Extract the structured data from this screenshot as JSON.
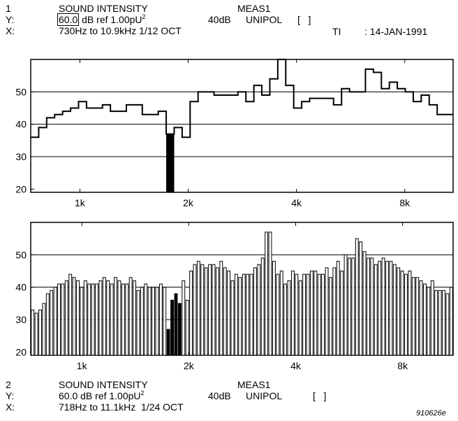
{
  "top": {
    "number": "1",
    "title": "SOUND INTENSITY",
    "meas": "MEAS1",
    "y_prefix": "Y:",
    "y_level": "60.0",
    "y_ref": "dB ref 1.00pU",
    "y_sup": "2",
    "range": "40dB",
    "mode": "UNIPOL",
    "brackets": "[   ]",
    "x_prefix": "X:",
    "x_text": "730Hz to 10.9kHz 1/12 OCT",
    "ti_label": "TI",
    "date": ": 14-JAN-1991"
  },
  "bottom": {
    "number": "2",
    "title": "SOUND INTENSITY",
    "meas": "MEAS1",
    "y_prefix": "Y:",
    "y_text": "60.0 dB ref 1.00pU",
    "y_sup": "2",
    "range": "40dB",
    "mode": "UNIPOL",
    "brackets": "[   ]",
    "x_prefix": "X:",
    "x_text": "718Hz to 11.1kHz  1/24 OCT"
  },
  "figure_code": "910626e",
  "chart_data": [
    {
      "type": "bar",
      "style": "step",
      "x_scale": "log",
      "x_ticks": [
        {
          "label": "1k",
          "hz": 1000
        },
        {
          "label": "2k",
          "hz": 2000
        },
        {
          "label": "4k",
          "hz": 4000
        },
        {
          "label": "8k",
          "hz": 8000
        }
      ],
      "x_range_hz": [
        730,
        10900
      ],
      "bands_per_octave": 12,
      "y_ticks": [
        20,
        30,
        40,
        50
      ],
      "ylim": [
        19,
        60
      ],
      "grid_y": [
        30,
        40,
        50
      ],
      "negative_color": "#000000",
      "values": [
        36,
        39,
        42,
        43,
        44,
        45,
        47,
        45,
        45,
        46,
        44,
        44,
        46,
        46,
        43,
        43,
        44,
        37,
        39,
        36,
        47,
        50,
        50,
        49,
        49,
        49,
        50,
        47,
        52,
        49,
        54,
        60,
        52,
        45,
        47,
        48,
        48,
        48,
        46,
        51,
        50,
        50,
        57,
        56,
        51,
        53,
        51,
        50,
        47,
        49,
        46,
        43,
        43
      ],
      "negative": [
        false,
        false,
        false,
        false,
        false,
        false,
        false,
        false,
        false,
        false,
        false,
        false,
        false,
        false,
        false,
        false,
        false,
        true,
        false,
        false,
        false,
        false,
        false,
        false,
        false,
        false,
        false,
        false,
        false,
        false,
        false,
        false,
        false,
        false,
        false,
        false,
        false,
        false,
        false,
        false,
        false,
        false,
        false,
        false,
        false,
        false,
        false,
        false,
        false,
        false,
        false,
        false,
        false
      ]
    },
    {
      "type": "bar",
      "x_scale": "log",
      "x_ticks": [
        {
          "label": "1k",
          "hz": 1000
        },
        {
          "label": "2k",
          "hz": 2000
        },
        {
          "label": "4k",
          "hz": 4000
        },
        {
          "label": "8k",
          "hz": 8000
        }
      ],
      "x_range_hz": [
        718,
        11100
      ],
      "bands_per_octave": 24,
      "y_ticks": [
        20,
        30,
        40,
        50
      ],
      "ylim": [
        19,
        60
      ],
      "grid_y": [
        30,
        40,
        50
      ],
      "negative_color": "#000000",
      "values": [
        33,
        32,
        33,
        35,
        38,
        39,
        40,
        41,
        41,
        42,
        44,
        43,
        42,
        40,
        42,
        41,
        41,
        41,
        42,
        43,
        42,
        41,
        43,
        42,
        41,
        41,
        43,
        42,
        39,
        40,
        41,
        40,
        40,
        40,
        41,
        40,
        27,
        36,
        38,
        35,
        42,
        36,
        45,
        47,
        48,
        47,
        46,
        47,
        47,
        46,
        48,
        46,
        45,
        42,
        44,
        43,
        44,
        44,
        44,
        46,
        47,
        49,
        57,
        57,
        48,
        44,
        45,
        41,
        42,
        45,
        44,
        42,
        44,
        44,
        45,
        45,
        44,
        44,
        46,
        43,
        46,
        48,
        45,
        50,
        49,
        49,
        55,
        54,
        51,
        49,
        49,
        47,
        48,
        49,
        48,
        48,
        47,
        46,
        45,
        44,
        45,
        43,
        43,
        42,
        41,
        40,
        42,
        39,
        39,
        39,
        38,
        40
      ],
      "negative": [
        false,
        false,
        false,
        false,
        false,
        false,
        false,
        false,
        false,
        false,
        false,
        false,
        false,
        false,
        false,
        false,
        false,
        false,
        false,
        false,
        false,
        false,
        false,
        false,
        false,
        false,
        false,
        false,
        false,
        false,
        false,
        false,
        false,
        false,
        false,
        false,
        true,
        true,
        true,
        true,
        false,
        false,
        false,
        false,
        false,
        false,
        false,
        false,
        false,
        false,
        false,
        false,
        false,
        false,
        false,
        false,
        false,
        false,
        false,
        false,
        false,
        false,
        false,
        false,
        false,
        false,
        false,
        false,
        false,
        false,
        false,
        false,
        false,
        false,
        false,
        false,
        false,
        false,
        false,
        false,
        false,
        false,
        false,
        false,
        false,
        false,
        false,
        false,
        false,
        false,
        false,
        false,
        false,
        false,
        false,
        false,
        false,
        false,
        false,
        false,
        false,
        false,
        false,
        false,
        false,
        false,
        false,
        false,
        false,
        false,
        false,
        false
      ]
    }
  ]
}
